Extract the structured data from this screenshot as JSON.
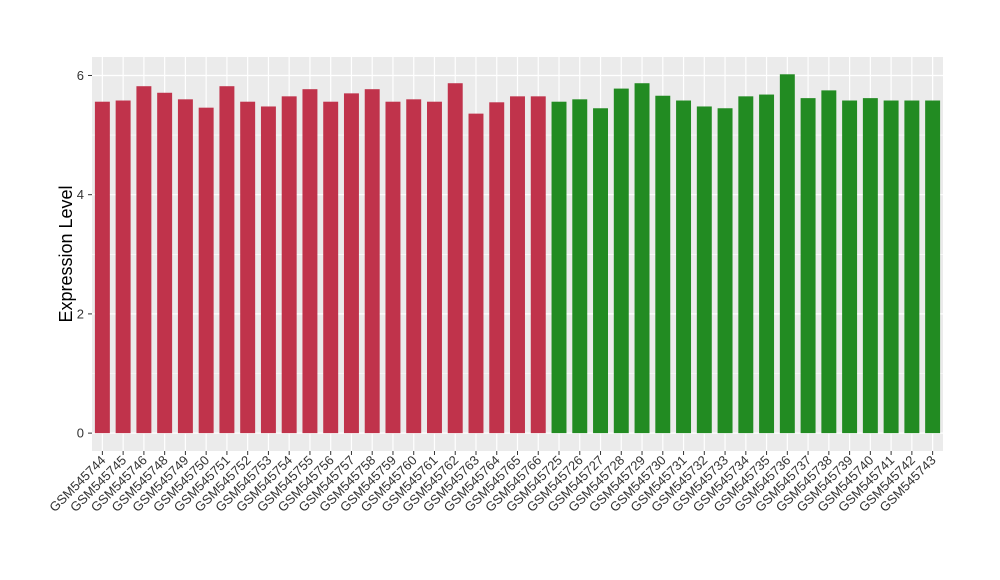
{
  "chart_data": {
    "type": "bar",
    "ylabel": "Expression Level",
    "categories": [
      "GSM545744",
      "GSM545745",
      "GSM545746",
      "GSM545748",
      "GSM545749",
      "GSM545750",
      "GSM545751",
      "GSM545752",
      "GSM545753",
      "GSM545754",
      "GSM545755",
      "GSM545756",
      "GSM545757",
      "GSM545758",
      "GSM545759",
      "GSM545760",
      "GSM545761",
      "GSM545762",
      "GSM545763",
      "GSM545764",
      "GSM545765",
      "GSM545766",
      "GSM545725",
      "GSM545726",
      "GSM545727",
      "GSM545728",
      "GSM545729",
      "GSM545730",
      "GSM545731",
      "GSM545732",
      "GSM545733",
      "GSM545734",
      "GSM545735",
      "GSM545736",
      "GSM545737",
      "GSM545738",
      "GSM545739",
      "GSM545740",
      "GSM545741",
      "GSM545742",
      "GSM545743"
    ],
    "values": [
      5.56,
      5.58,
      5.82,
      5.71,
      5.6,
      5.46,
      5.82,
      5.56,
      5.48,
      5.65,
      5.77,
      5.56,
      5.7,
      5.77,
      5.56,
      5.6,
      5.56,
      5.87,
      5.36,
      5.55,
      5.65,
      5.65,
      5.56,
      5.6,
      5.45,
      5.78,
      5.87,
      5.66,
      5.58,
      5.48,
      5.45,
      5.65,
      5.68,
      6.02,
      5.62,
      5.75,
      5.58,
      5.62,
      5.58,
      5.58,
      5.58
    ],
    "colors": [
      "#c0334b",
      "#c0334b",
      "#c0334b",
      "#c0334b",
      "#c0334b",
      "#c0334b",
      "#c0334b",
      "#c0334b",
      "#c0334b",
      "#c0334b",
      "#c0334b",
      "#c0334b",
      "#c0334b",
      "#c0334b",
      "#c0334b",
      "#c0334b",
      "#c0334b",
      "#c0334b",
      "#c0334b",
      "#c0334b",
      "#c0334b",
      "#c0334b",
      "#228b22",
      "#228b22",
      "#228b22",
      "#228b22",
      "#228b22",
      "#228b22",
      "#228b22",
      "#228b22",
      "#228b22",
      "#228b22",
      "#228b22",
      "#228b22",
      "#228b22",
      "#228b22",
      "#228b22",
      "#228b22",
      "#228b22",
      "#228b22",
      "#228b22"
    ],
    "ylim": [
      -0.3,
      6.31
    ],
    "yticks": [
      0,
      2,
      4,
      6
    ],
    "grid": true
  }
}
